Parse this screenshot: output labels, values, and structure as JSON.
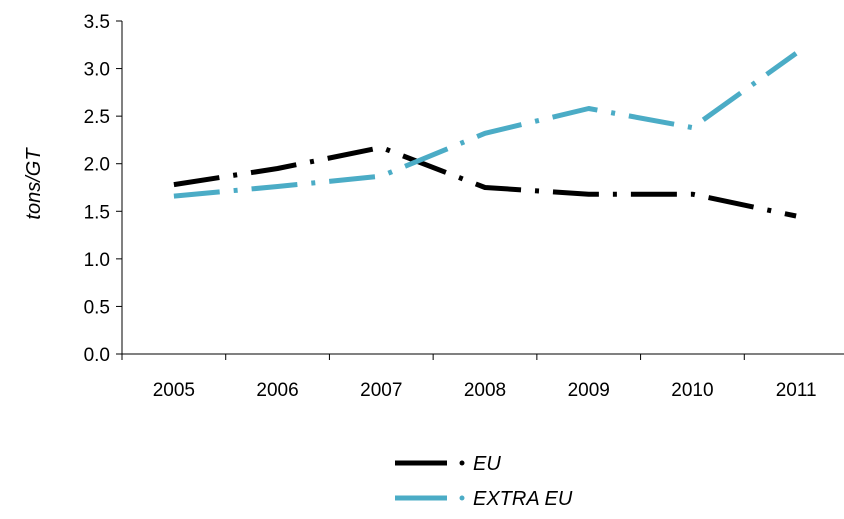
{
  "chart_data": {
    "type": "line",
    "title": "",
    "xlabel": "",
    "ylabel": "tons/GT",
    "categories": [
      "2005",
      "2006",
      "2007",
      "2008",
      "2009",
      "2010",
      "2011"
    ],
    "y_ticks": [
      "0.0",
      "0.5",
      "1.0",
      "1.5",
      "2.0",
      "2.5",
      "3.0",
      "3.5"
    ],
    "ylim": [
      0,
      3.5
    ],
    "grid": false,
    "legend_position": "bottom",
    "series": [
      {
        "name": "EU",
        "color": "#000000",
        "values": [
          1.78,
          1.95,
          2.17,
          1.75,
          1.68,
          1.68,
          1.45
        ]
      },
      {
        "name": "EXTRA EU",
        "color": "#4BACC6",
        "values": [
          1.66,
          1.76,
          1.87,
          2.32,
          2.58,
          2.38,
          3.16
        ]
      }
    ]
  }
}
